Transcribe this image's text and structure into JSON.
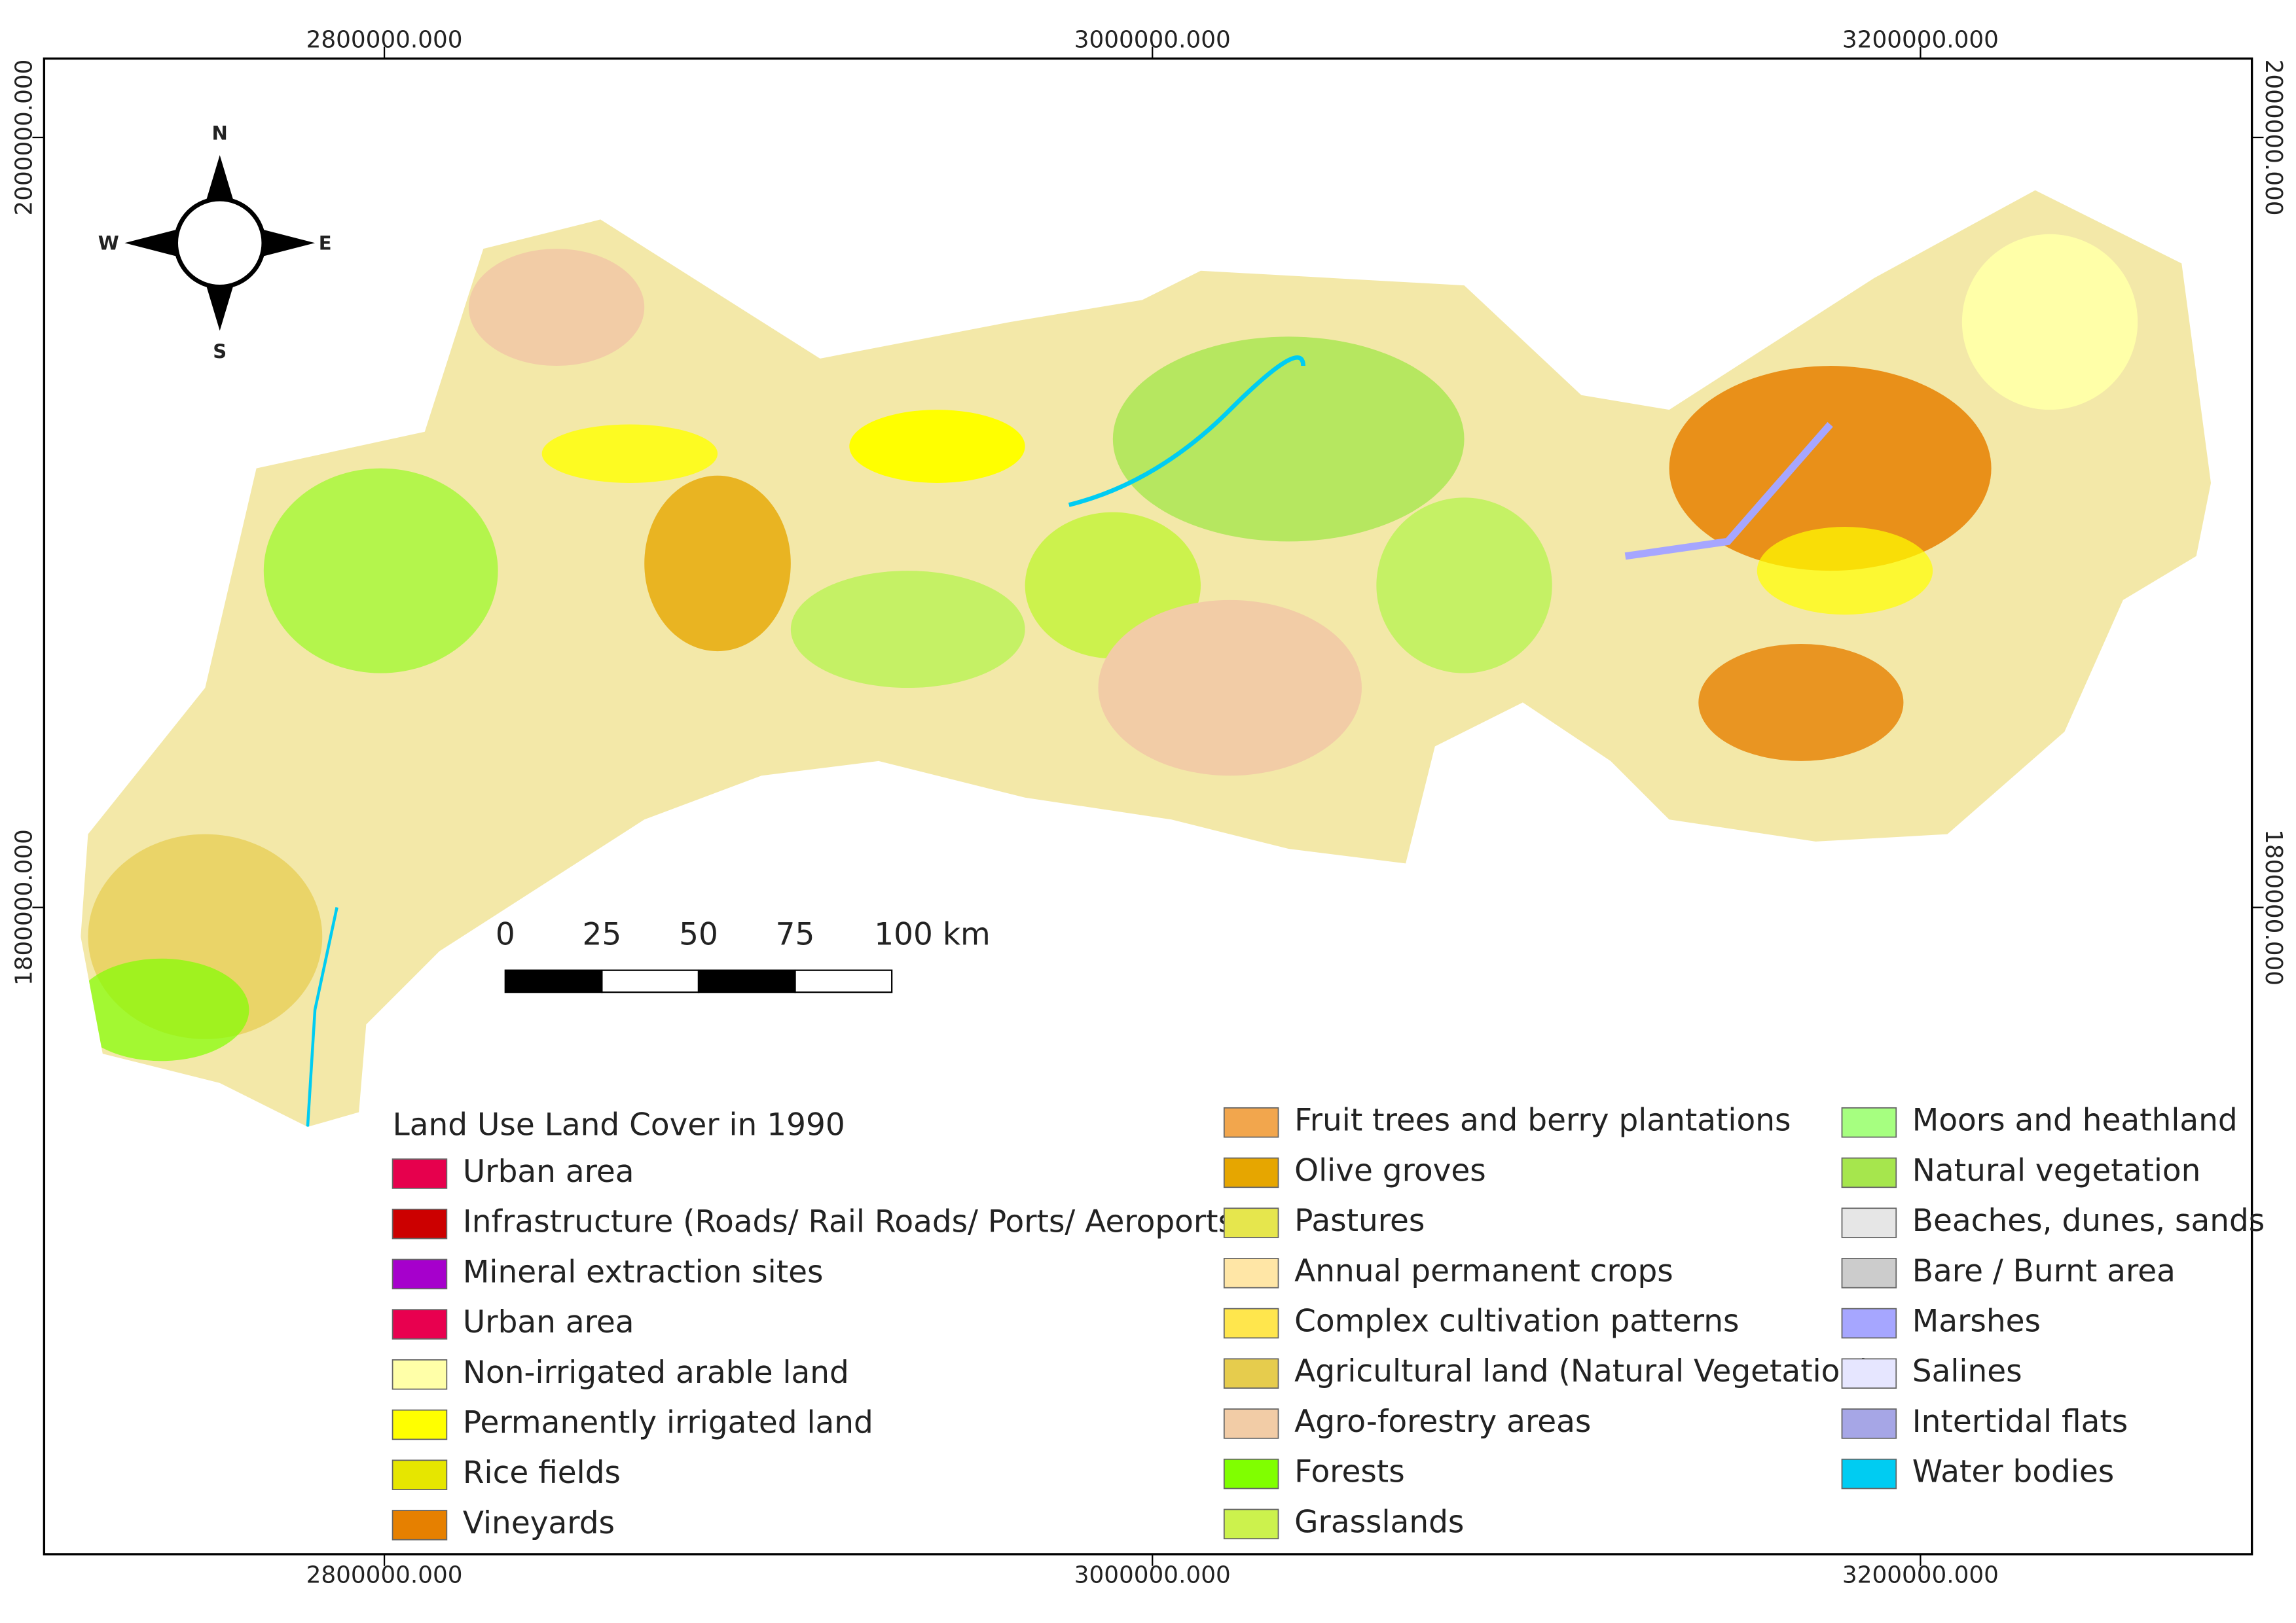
{
  "map": {
    "title": "Land Use Land Cover in 1990",
    "xlim": [
      2711400,
      3286300
    ],
    "ylim": [
      1632000,
      2020500
    ],
    "xticks": [
      {
        "value": 2800000,
        "label": "2800000.000"
      },
      {
        "value": 3000000,
        "label": "3000000.000"
      },
      {
        "value": 3200000,
        "label": "3200000.000"
      }
    ],
    "yticks": [
      {
        "value": 1800000,
        "label": "1800000.000"
      },
      {
        "value": 2000000,
        "label": "2000000.000"
      }
    ],
    "compass": {
      "north": "N",
      "east": "E",
      "south": "S",
      "west": "W"
    },
    "scale_bar": [
      "0",
      "25",
      "50",
      "75",
      "100 km"
    ],
    "legend": [
      {
        "name": "Urban area",
        "color": "#e6004d"
      },
      {
        "name": "Infrastructure (Roads/ Rail Roads/ Ports/ Aeroports)",
        "color": "#cc0000"
      },
      {
        "name": "Mineral extraction sites",
        "color": "#a600cc"
      },
      {
        "name": "Urban area",
        "color": "#e8004f"
      },
      {
        "name": "Non-irrigated arable land",
        "color": "#ffffa8"
      },
      {
        "name": "Permanently irrigated land",
        "color": "#ffff00"
      },
      {
        "name": "Rice fields",
        "color": "#e6e600"
      },
      {
        "name": "Vineyards",
        "color": "#e68000"
      },
      {
        "name": "Fruit trees and berry plantations",
        "color": "#f2a64d"
      },
      {
        "name": "Olive groves",
        "color": "#e6a600"
      },
      {
        "name": "Pastures",
        "color": "#e6e64d"
      },
      {
        "name": "Annual permanent crops",
        "color": "#ffe6a6"
      },
      {
        "name": "Complex cultivation patterns",
        "color": "#ffe64d"
      },
      {
        "name": "Agricultural land (Natural Vegetation)",
        "color": "#e6cc4d"
      },
      {
        "name": "Agro-forestry areas",
        "color": "#f2cca6"
      },
      {
        "name": "Forests",
        "color": "#80ff00"
      },
      {
        "name": "Grasslands",
        "color": "#ccf24d"
      },
      {
        "name": "Moors and heathland",
        "color": "#a6ff80"
      },
      {
        "name": "Natural vegetation",
        "color": "#a6e64d"
      },
      {
        "name": "Beaches, dunes, sands",
        "color": "#e6e6e6"
      },
      {
        "name": "Bare / Burnt area",
        "color": "#cccccc"
      },
      {
        "name": "Marshes",
        "color": "#a6a6ff"
      },
      {
        "name": "Salines",
        "color": "#e6e6ff"
      },
      {
        "name": "Intertidal flats",
        "color": "#a6a6e6"
      },
      {
        "name": "Water bodies",
        "color": "#00ccf2"
      }
    ]
  }
}
